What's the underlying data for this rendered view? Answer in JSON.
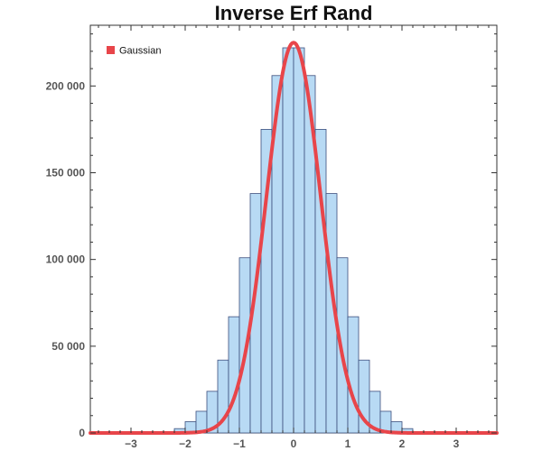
{
  "chart_data": {
    "type": "bar",
    "title": "Inverse Erf Rand",
    "xlabel": "",
    "ylabel": "",
    "xlim": [
      -3.75,
      3.75
    ],
    "ylim": [
      0,
      235000
    ],
    "x_ticks": [
      -3,
      -2,
      -1,
      0,
      1,
      2,
      3
    ],
    "x_tick_labels": [
      "−3",
      "−2",
      "−1",
      "0",
      "1",
      "2",
      "3"
    ],
    "y_ticks": [
      0,
      50000,
      100000,
      150000,
      200000
    ],
    "y_tick_labels": [
      "0",
      "50 000",
      "100 000",
      "150 000",
      "200 000"
    ],
    "bin_width": 0.2,
    "bins": [
      {
        "x0": -2.2,
        "x1": -2.0,
        "value": 2500
      },
      {
        "x0": -2.0,
        "x1": -1.8,
        "value": 6500
      },
      {
        "x0": -1.8,
        "x1": -1.6,
        "value": 12500
      },
      {
        "x0": -1.6,
        "x1": -1.4,
        "value": 24000
      },
      {
        "x0": -1.4,
        "x1": -1.2,
        "value": 42000
      },
      {
        "x0": -1.2,
        "x1": -1.0,
        "value": 67000
      },
      {
        "x0": -1.0,
        "x1": -0.8,
        "value": 101000
      },
      {
        "x0": -0.8,
        "x1": -0.6,
        "value": 138000
      },
      {
        "x0": -0.6,
        "x1": -0.4,
        "value": 175000
      },
      {
        "x0": -0.4,
        "x1": -0.2,
        "value": 206000
      },
      {
        "x0": -0.2,
        "x1": 0.0,
        "value": 222000
      },
      {
        "x0": 0.0,
        "x1": 0.2,
        "value": 222000
      },
      {
        "x0": 0.2,
        "x1": 0.4,
        "value": 206000
      },
      {
        "x0": 0.4,
        "x1": 0.6,
        "value": 175000
      },
      {
        "x0": 0.6,
        "x1": 0.8,
        "value": 138000
      },
      {
        "x0": 0.8,
        "x1": 1.0,
        "value": 101000
      },
      {
        "x0": 1.0,
        "x1": 1.2,
        "value": 67000
      },
      {
        "x0": 1.2,
        "x1": 1.4,
        "value": 42000
      },
      {
        "x0": 1.4,
        "x1": 1.6,
        "value": 24000
      },
      {
        "x0": 1.6,
        "x1": 1.8,
        "value": 12500
      },
      {
        "x0": 1.8,
        "x1": 2.0,
        "value": 6500
      },
      {
        "x0": 2.0,
        "x1": 2.2,
        "value": 2500
      }
    ],
    "series": [
      {
        "name": "Gaussian",
        "type": "line",
        "peak": 225000,
        "mean": 0,
        "sd": 0.5,
        "color": "#e8454a"
      }
    ],
    "bar_color": "#b8daf4",
    "bar_edge_color": "#3c4f7e",
    "legend": {
      "position": "top-left",
      "entries": [
        "Gaussian"
      ]
    },
    "grid": false
  }
}
